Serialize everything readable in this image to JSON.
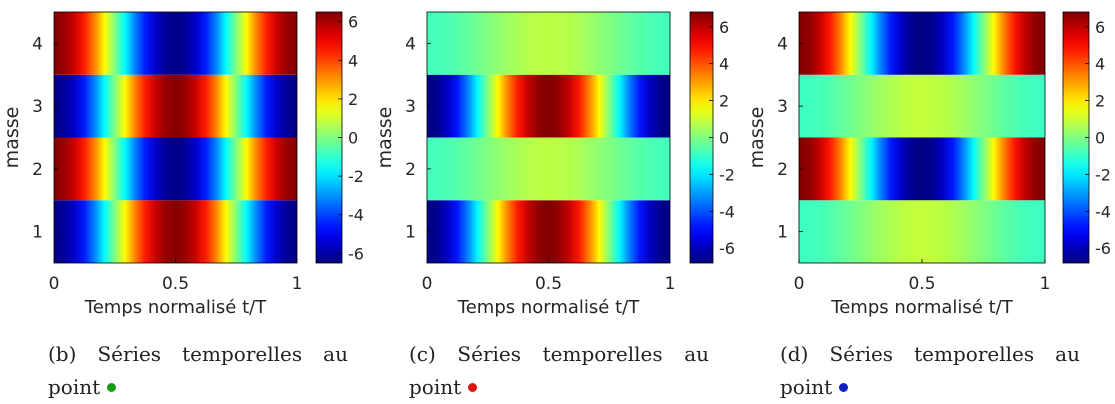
{
  "chart_data": [
    {
      "type": "heatmap",
      "panel": "b",
      "xlabel": "Temps normalisé t/T",
      "ylabel": "masse",
      "x_ticks": [
        "0",
        "0.5",
        "1"
      ],
      "y_ticks": [
        "1",
        "2",
        "3",
        "4"
      ],
      "xlim": [
        0,
        1
      ],
      "ylim": [
        0.5,
        4.5
      ],
      "colorbar_ticks": [
        "-6",
        "-4",
        "-2",
        "0",
        "2",
        "4",
        "6"
      ],
      "colorbar_range": [
        -6.5,
        6.5
      ],
      "colormap": "jet",
      "rows": [
        {
          "masse": 1,
          "amplitude": 6.4,
          "phase": "antiphase"
        },
        {
          "masse": 2,
          "amplitude": 6.4,
          "phase": "inphase"
        },
        {
          "masse": 3,
          "amplitude": 6.4,
          "phase": "antiphase"
        },
        {
          "masse": 4,
          "amplitude": 6.4,
          "phase": "inphase"
        }
      ],
      "caption": "(b) Séries temporelles au point",
      "marker_color": "#1a9a1a"
    },
    {
      "type": "heatmap",
      "panel": "c",
      "xlabel": "Temps normalisé t/T",
      "ylabel": "masse",
      "x_ticks": [
        "0",
        "0.5",
        "1"
      ],
      "y_ticks": [
        "1",
        "2",
        "3",
        "4"
      ],
      "xlim": [
        0,
        1
      ],
      "ylim": [
        0.5,
        4.5
      ],
      "colorbar_ticks": [
        "-6",
        "-4",
        "-2",
        "0",
        "2",
        "4",
        "6"
      ],
      "colorbar_range": [
        -6.8,
        6.8
      ],
      "colormap": "jet",
      "rows": [
        {
          "masse": 1,
          "amplitude": 6.8,
          "phase": "antiphase"
        },
        {
          "masse": 2,
          "amplitude": 0.8,
          "phase": "antiphase"
        },
        {
          "masse": 3,
          "amplitude": 6.8,
          "phase": "antiphase"
        },
        {
          "masse": 4,
          "amplitude": 0.8,
          "phase": "antiphase"
        }
      ],
      "caption": "(c) Séries temporelles au point",
      "marker_color": "#e01010"
    },
    {
      "type": "heatmap",
      "panel": "d",
      "xlabel": "Temps normalisé t/T",
      "ylabel": "masse",
      "x_ticks": [
        "0",
        "0.5",
        "1"
      ],
      "y_ticks": [
        "1",
        "2",
        "3",
        "4"
      ],
      "xlim": [
        0,
        1
      ],
      "ylim": [
        0.5,
        4.5
      ],
      "colorbar_ticks": [
        "-6",
        "-4",
        "-2",
        "0",
        "2",
        "4",
        "6"
      ],
      "colorbar_range": [
        -6.8,
        6.8
      ],
      "colormap": "jet",
      "rows": [
        {
          "masse": 1,
          "amplitude": 0.9,
          "phase": "antiphase"
        },
        {
          "masse": 2,
          "amplitude": 6.8,
          "phase": "inphase"
        },
        {
          "masse": 3,
          "amplitude": 0.9,
          "phase": "antiphase"
        },
        {
          "masse": 4,
          "amplitude": 6.8,
          "phase": "inphase"
        }
      ],
      "caption": "(d) Séries temporelles au point",
      "marker_color": "#1020c0"
    }
  ]
}
